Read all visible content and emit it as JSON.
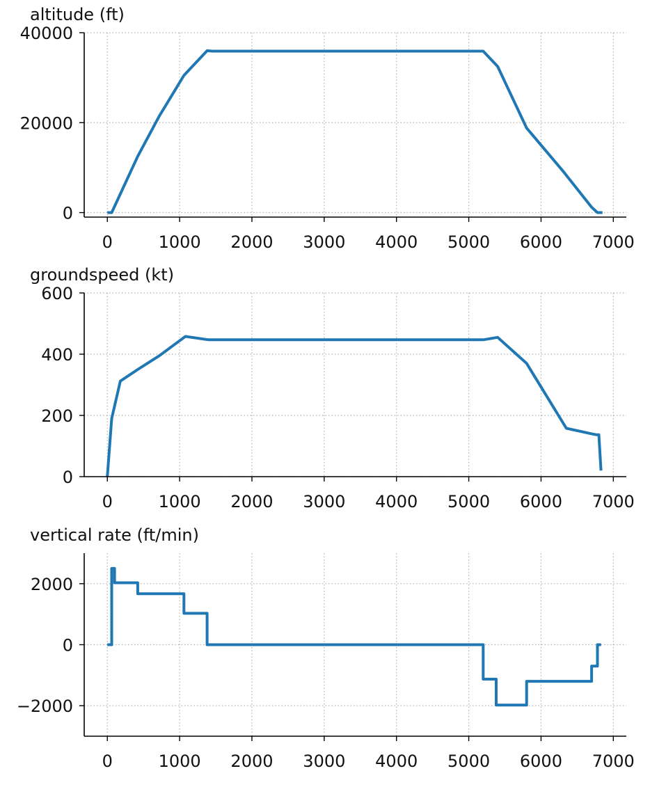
{
  "chart_data": [
    {
      "type": "line",
      "title": "altitude (ft)",
      "xlim": [
        -320,
        7180
      ],
      "ylim": [
        -1000,
        40000
      ],
      "xticks": [
        0,
        1000,
        2000,
        3000,
        4000,
        5000,
        6000,
        7000
      ],
      "xtick_labels": [
        "0",
        "1000",
        "2000",
        "3000",
        "4000",
        "5000",
        "6000",
        "7000"
      ],
      "yticks": [
        0,
        20000,
        40000
      ],
      "ytick_labels": [
        "0",
        "20000",
        "40000"
      ],
      "grid": true,
      "color": "#1f77b4",
      "x": [
        0,
        60,
        420,
        720,
        1060,
        1380,
        1450,
        5200,
        5400,
        5800,
        6300,
        6700,
        6780,
        6850
      ],
      "y": [
        0,
        0,
        12500,
        21500,
        30500,
        36000,
        35900,
        35900,
        32500,
        18800,
        9300,
        1200,
        0,
        0
      ]
    },
    {
      "type": "line",
      "title": "groundspeed (kt)",
      "xlim": [
        -320,
        7180
      ],
      "ylim": [
        0,
        600
      ],
      "xticks": [
        0,
        1000,
        2000,
        3000,
        4000,
        5000,
        6000,
        7000
      ],
      "xtick_labels": [
        "0",
        "1000",
        "2000",
        "3000",
        "4000",
        "5000",
        "6000",
        "7000"
      ],
      "yticks": [
        0,
        200,
        400,
        600
      ],
      "ytick_labels": [
        "0",
        "200",
        "400",
        "600"
      ],
      "grid": true,
      "color": "#1f77b4",
      "x": [
        0,
        60,
        180,
        420,
        720,
        1080,
        1400,
        5200,
        5400,
        5800,
        6350,
        6700,
        6760,
        6800,
        6830
      ],
      "y": [
        0,
        190,
        312,
        350,
        395,
        458,
        447,
        447,
        455,
        370,
        158,
        140,
        137,
        137,
        20
      ]
    },
    {
      "type": "line",
      "title": "vertical rate (ft/min)",
      "xlim": [
        -320,
        7180
      ],
      "ylim": [
        -3000,
        3000
      ],
      "xticks": [
        0,
        1000,
        2000,
        3000,
        4000,
        5000,
        6000,
        7000
      ],
      "xtick_labels": [
        "0",
        "1000",
        "2000",
        "3000",
        "4000",
        "5000",
        "6000",
        "7000"
      ],
      "yticks": [
        -2000,
        0,
        2000
      ],
      "ytick_labels": [
        "−2000",
        "0",
        "2000"
      ],
      "grid": true,
      "color": "#1f77b4",
      "x": [
        0,
        60,
        60,
        100,
        100,
        420,
        420,
        1060,
        1060,
        1380,
        1380,
        5200,
        5200,
        5380,
        5380,
        5800,
        5800,
        6700,
        6700,
        6780,
        6780,
        6830
      ],
      "y": [
        0,
        0,
        2500,
        2500,
        2030,
        2030,
        1670,
        1670,
        1030,
        1030,
        0,
        0,
        -1130,
        -1130,
        -1980,
        -1980,
        -1200,
        -1200,
        -700,
        -700,
        0,
        0
      ]
    }
  ]
}
